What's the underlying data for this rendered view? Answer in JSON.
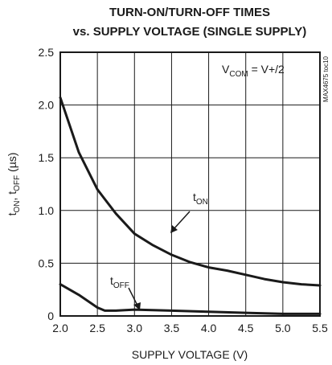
{
  "chart_data": {
    "type": "line",
    "title": [
      "TURN-ON/TURN-OFF TIMES",
      "vs. SUPPLY VOLTAGE (SINGLE SUPPLY)"
    ],
    "xlabel": "SUPPLY VOLTAGE (V)",
    "ylabel": [
      {
        "text": "t"
      },
      {
        "text": "ON",
        "sub": true
      },
      {
        "text": ", t"
      },
      {
        "text": "OFF",
        "sub": true
      },
      {
        "text": " (µs)"
      }
    ],
    "xlim": [
      2,
      5.5
    ],
    "ylim": [
      0,
      2.5
    ],
    "xticks": [
      {
        "value": 2,
        "label": "2.0"
      },
      2.5,
      {
        "value": 3,
        "label": "3.0"
      },
      3.5,
      {
        "value": 4,
        "label": "4.0"
      },
      4.5,
      {
        "value": 5,
        "label": "5.0"
      },
      5.5
    ],
    "yticks": [
      0,
      0.5,
      {
        "value": 1,
        "label": "1.0"
      },
      1.5,
      {
        "value": 2,
        "label": "2.0"
      },
      2.5
    ],
    "grid": true,
    "series": [
      {
        "color": "#1a1a1a",
        "x": [
          2.0,
          2.25,
          2.5,
          2.75,
          3.0,
          3.25,
          3.5,
          3.75,
          4.0,
          4.25,
          4.5,
          4.75,
          5.0,
          5.25,
          5.5
        ],
        "values": [
          2.07,
          1.55,
          1.2,
          0.97,
          0.78,
          0.67,
          0.58,
          0.51,
          0.46,
          0.43,
          0.39,
          0.35,
          0.32,
          0.3,
          0.29
        ]
      },
      {
        "color": "#1a1a1a",
        "x": [
          2.0,
          2.25,
          2.5,
          2.6,
          2.75,
          3.0,
          3.5,
          4.0,
          4.5,
          5.0,
          5.5
        ],
        "values": [
          0.3,
          0.2,
          0.08,
          0.05,
          0.05,
          0.06,
          0.05,
          0.04,
          0.03,
          0.02,
          0.02
        ]
      }
    ],
    "annotations": [
      [
        {
          "text": "V"
        },
        {
          "text": "COM",
          "sub": true
        },
        {
          "text": " = V+/2"
        }
      ],
      [
        {
          "text": "t"
        },
        {
          "text": "ON",
          "sub": true
        }
      ],
      [
        {
          "text": "t"
        },
        {
          "text": "OFF",
          "sub": true
        }
      ]
    ],
    "side_note": "MAX4675 toc10"
  }
}
